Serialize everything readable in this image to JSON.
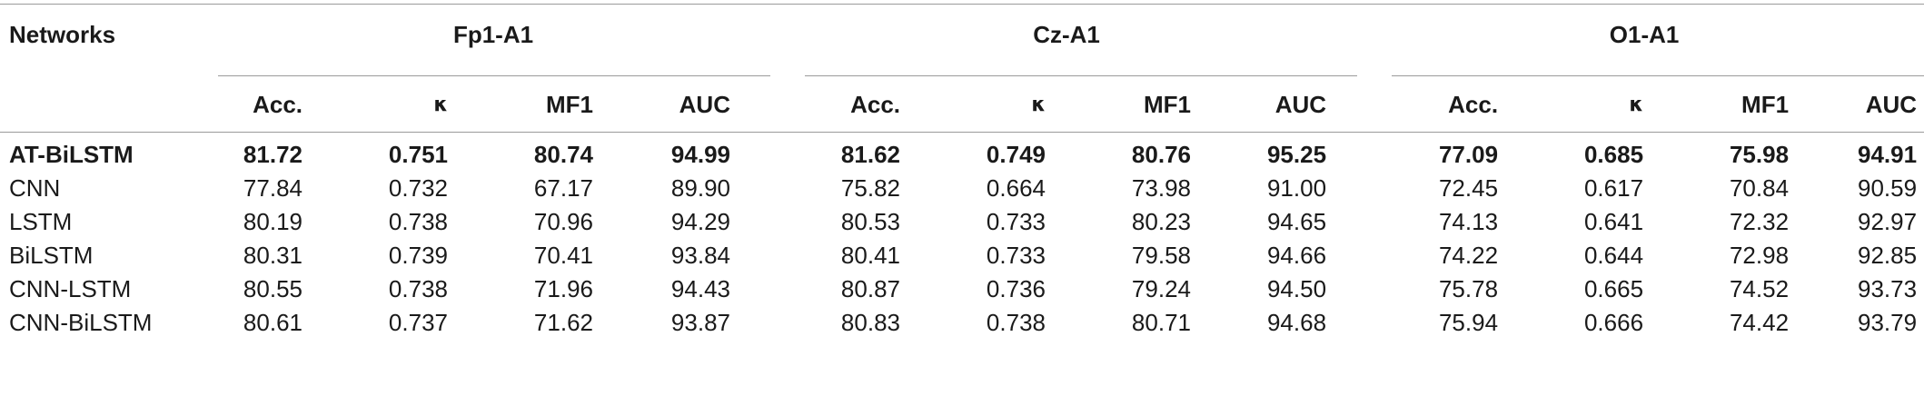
{
  "header": {
    "networks_label": "Networks",
    "groups": [
      "Fp1-A1",
      "Cz-A1",
      "O1-A1"
    ],
    "subheaders": [
      "Acc.",
      "κ",
      "MF1",
      "AUC"
    ]
  },
  "rows": [
    {
      "name": "AT-BiLSTM",
      "bold": true,
      "values": [
        "81.72",
        "0.751",
        "80.74",
        "94.99",
        "81.62",
        "0.749",
        "80.76",
        "95.25",
        "77.09",
        "0.685",
        "75.98",
        "94.91"
      ]
    },
    {
      "name": "CNN",
      "bold": false,
      "values": [
        "77.84",
        "0.732",
        "67.17",
        "89.90",
        "75.82",
        "0.664",
        "73.98",
        "91.00",
        "72.45",
        "0.617",
        "70.84",
        "90.59"
      ]
    },
    {
      "name": "LSTM",
      "bold": false,
      "values": [
        "80.19",
        "0.738",
        "70.96",
        "94.29",
        "80.53",
        "0.733",
        "80.23",
        "94.65",
        "74.13",
        "0.641",
        "72.32",
        "92.97"
      ]
    },
    {
      "name": "BiLSTM",
      "bold": false,
      "values": [
        "80.31",
        "0.739",
        "70.41",
        "93.84",
        "80.41",
        "0.733",
        "79.58",
        "94.66",
        "74.22",
        "0.644",
        "72.98",
        "92.85"
      ]
    },
    {
      "name": "CNN-LSTM",
      "bold": false,
      "values": [
        "80.55",
        "0.738",
        "71.96",
        "94.43",
        "80.87",
        "0.736",
        "79.24",
        "94.50",
        "75.78",
        "0.665",
        "74.52",
        "93.73"
      ]
    },
    {
      "name": "CNN-BiLSTM",
      "bold": false,
      "values": [
        "80.61",
        "0.737",
        "71.62",
        "93.87",
        "80.83",
        "0.738",
        "80.71",
        "94.68",
        "75.94",
        "0.666",
        "74.42",
        "93.79"
      ]
    }
  ]
}
